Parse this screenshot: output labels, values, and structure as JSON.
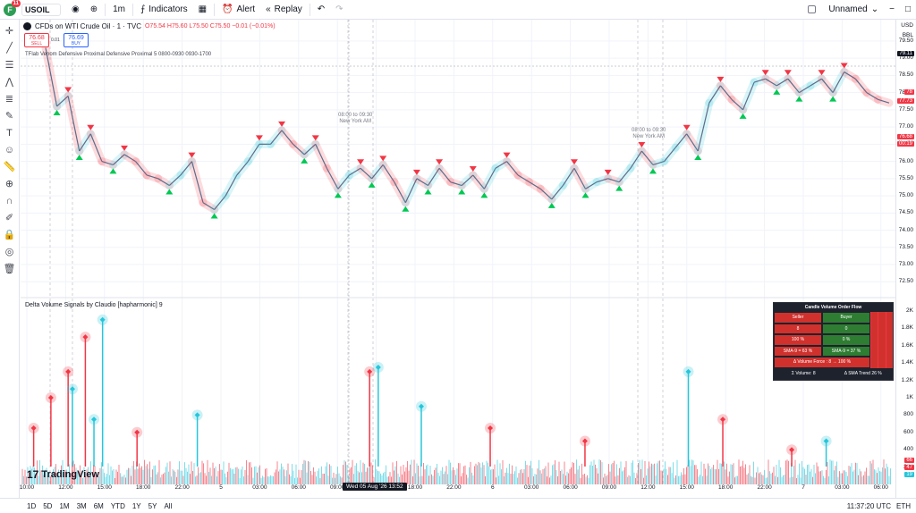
{
  "topbar": {
    "avatar_letter": "F",
    "avatar_badge": "11",
    "symbol": "USOIL",
    "interval": "1m",
    "indicators_label": "Indicators",
    "alert_label": "Alert",
    "replay_label": "Replay",
    "layout_name": "Unnamed"
  },
  "legend": {
    "title": "CFDs on WTI Crude Oil · 1 · TVC",
    "ohlc": "O75.54 H75.60 L75.50 C75.50 −0.01 (−0.01%)",
    "sell_price": "76.68",
    "sell_label": "SELL",
    "spread": "0.01",
    "buy_price": "76.69",
    "buy_label": "BUY",
    "indicator1": "TFlab Venom Defensive Proximal Defensive Proximal 5 0800-0930 0930-1700",
    "indicator2": "Delta Volume Signals by Claudio [hapharmonic] 9"
  },
  "session_labels": [
    {
      "line1": "08:00 to 09:30",
      "line2": "New York AM"
    },
    {
      "line1": "08:00 to 09:30",
      "line2": "New York AM"
    }
  ],
  "price_axis": {
    "currency": "USD",
    "unit": "BBL",
    "labels": [
      "79.50",
      "79.00",
      "78.50",
      "78.00",
      "77.50",
      "77.00",
      "76.50",
      "76.00",
      "75.50",
      "75.00",
      "74.50",
      "74.00",
      "73.50",
      "73.00",
      "72.50"
    ],
    "crosshair_price": "79.11",
    "current_price": "76.68",
    "countdown": "00:19",
    "tags": [
      "78",
      "77.73"
    ]
  },
  "volume_axis": {
    "labels": [
      "2K",
      "1.8K",
      "1.6K",
      "1.4K",
      "1.2K",
      "1K",
      "800",
      "600",
      "400",
      "200"
    ],
    "tags": [
      "66",
      "47",
      "19"
    ]
  },
  "cv_table": {
    "title": "Candle Volume Order Flow",
    "rows": [
      [
        "Seller",
        "Buyer"
      ],
      [
        "8",
        "0"
      ],
      [
        "100 %",
        "0 %"
      ],
      [
        "SMA-9 = 63 %",
        "SMA-9 = 37 %"
      ]
    ],
    "force": "Δ Volume Force : 8 → 100 %",
    "volume": "Σ Volume: 8",
    "trend": "Δ SMA Trend 26 %"
  },
  "time_axis": {
    "labels": [
      "10:00",
      "12:00",
      "15:00",
      "18:00",
      "22:00",
      "5",
      "03:00",
      "06:00",
      "09:00",
      "15:00",
      "18:00",
      "22:00",
      "6",
      "03:00",
      "06:00",
      "09:00",
      "12:00",
      "15:00",
      "18:00",
      "22:00",
      "7",
      "03:00",
      "06:00"
    ],
    "cursor": "Wed 05 Aug '26   13:52"
  },
  "bottombar": {
    "ranges": [
      "1D",
      "5D",
      "1M",
      "3M",
      "6M",
      "YTD",
      "1Y",
      "5Y",
      "All"
    ],
    "clock": "11:37:20 UTC",
    "extra": "ETH"
  },
  "brand": "TradingView",
  "colors": {
    "bull": "#00c853",
    "bear": "#f23645",
    "cyan": "#26c6da",
    "buy": "#2962ff"
  },
  "chart_data": {
    "type": "line",
    "title": "CFDs on WTI Crude Oil · 1 · TVC",
    "ylim": [
      72.3,
      79.6
    ],
    "series": [
      {
        "values": [
          79.3,
          77.6,
          77.9,
          76.3,
          76.8,
          76.0,
          75.9,
          76.2,
          76.0,
          75.6,
          75.5,
          75.3,
          75.6,
          76.0,
          74.8,
          74.6,
          75.0,
          75.6,
          76.0,
          76.5,
          76.5,
          76.9,
          76.5,
          76.2,
          76.5,
          75.8,
          75.2,
          75.6,
          75.8,
          75.5,
          75.9,
          75.4,
          74.8,
          75.5,
          75.3,
          75.8,
          75.4,
          75.3,
          75.6,
          75.2,
          75.8,
          76.0,
          75.6,
          75.4,
          75.2,
          74.9,
          75.3,
          75.8,
          75.2,
          75.4,
          75.5,
          75.4,
          75.8,
          76.3,
          75.9,
          76.0,
          76.4,
          76.8,
          76.3,
          77.7,
          78.2,
          77.8,
          77.5,
          78.3,
          78.4,
          78.2,
          78.4,
          78.0,
          78.2,
          78.4,
          78.0,
          78.6,
          78.4,
          78.0,
          77.8,
          77.7
        ]
      }
    ],
    "volume": {
      "ylim": [
        0,
        2000
      ],
      "spikes": [
        {
          "t": 0.01,
          "v": 650,
          "side": "sell"
        },
        {
          "t": 0.03,
          "v": 1000,
          "side": "sell"
        },
        {
          "t": 0.05,
          "v": 1300,
          "side": "sell"
        },
        {
          "t": 0.055,
          "v": 1100,
          "side": "buy"
        },
        {
          "t": 0.07,
          "v": 1700,
          "side": "sell"
        },
        {
          "t": 0.08,
          "v": 750,
          "side": "buy"
        },
        {
          "t": 0.09,
          "v": 1900,
          "side": "buy"
        },
        {
          "t": 0.13,
          "v": 600,
          "side": "sell"
        },
        {
          "t": 0.2,
          "v": 800,
          "side": "buy"
        },
        {
          "t": 0.4,
          "v": 1300,
          "side": "sell"
        },
        {
          "t": 0.41,
          "v": 1350,
          "side": "buy"
        },
        {
          "t": 0.46,
          "v": 900,
          "side": "buy"
        },
        {
          "t": 0.54,
          "v": 650,
          "side": "sell"
        },
        {
          "t": 0.65,
          "v": 500,
          "side": "sell"
        },
        {
          "t": 0.77,
          "v": 1300,
          "side": "buy"
        },
        {
          "t": 0.81,
          "v": 750,
          "side": "sell"
        },
        {
          "t": 0.89,
          "v": 400,
          "side": "sell"
        },
        {
          "t": 0.93,
          "v": 500,
          "side": "buy"
        }
      ]
    }
  }
}
